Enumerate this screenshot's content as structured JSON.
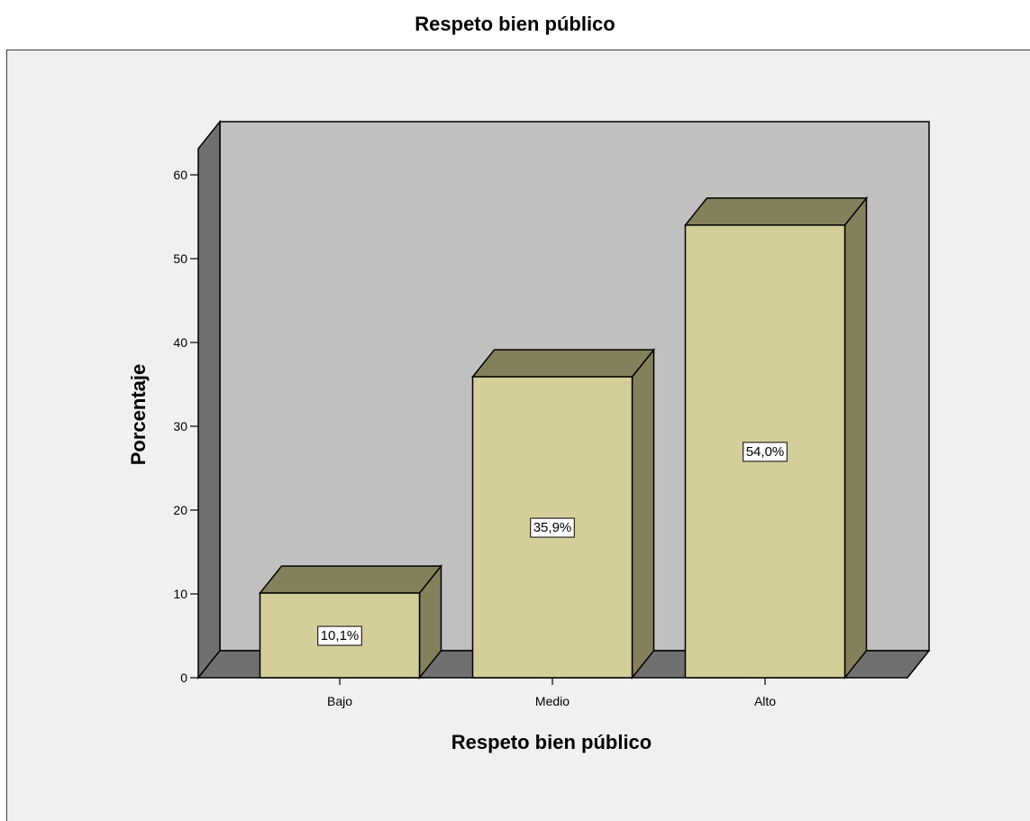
{
  "chart_data": {
    "type": "bar",
    "title": "Respeto bien público",
    "xlabel": "Respeto bien público",
    "ylabel": "Porcentaje",
    "categories": [
      "Bajo",
      "Medio",
      "Alto"
    ],
    "values": [
      10.1,
      35.9,
      54.0
    ],
    "data_labels": [
      "10,1%",
      "35,9%",
      "54,0%"
    ],
    "yticks": [
      0,
      10,
      20,
      30,
      40,
      50,
      60
    ],
    "ylim": [
      0,
      65
    ],
    "grid": false,
    "legend": "none",
    "style": "3d",
    "colors": {
      "bar_front": "#d4cf9a",
      "bar_top": "#85805c",
      "bar_side": "#85805c",
      "back_wall": "#c0c0c0",
      "side_wall": "#707070",
      "floor": "#707070",
      "background": "#f0f0f0"
    }
  }
}
